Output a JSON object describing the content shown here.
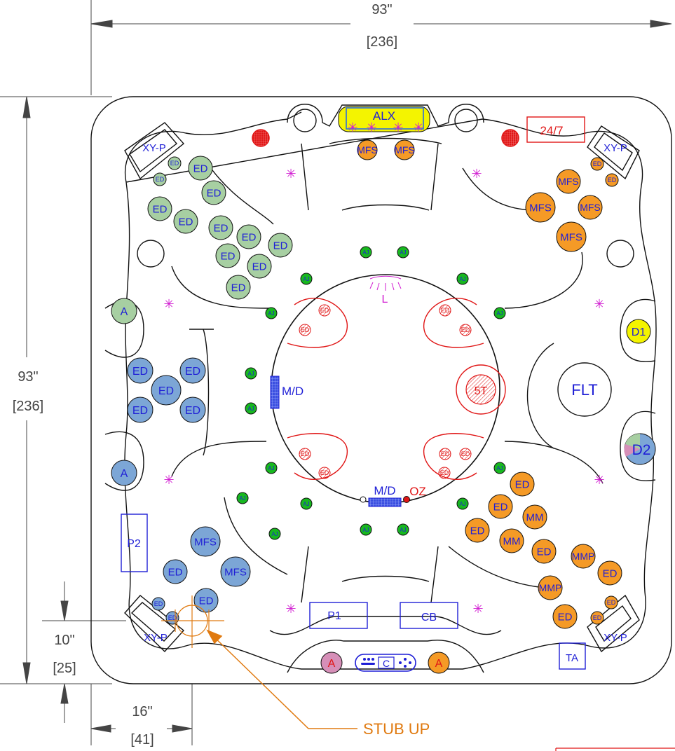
{
  "dimensions": {
    "top_width_in": "93\"",
    "top_width_cm": "[236]",
    "left_height_in": "93\"",
    "left_height_cm": "[236]",
    "corner_offset_y_in": "10\"",
    "corner_offset_y_cm": "[25]",
    "corner_offset_x_in": "16\"",
    "corner_offset_x_cm": "[41]"
  },
  "callout": {
    "stub_up": "STUB UP"
  },
  "colors": {
    "green_jet": "#a7cfa2",
    "blue_jet": "#7ca6d6",
    "orange_jet": "#f59a26",
    "small_green": "#17b81f",
    "label_blue": "#1f1fd6",
    "red": "#e01616",
    "magenta": "#d11bd1",
    "yellow": "#f4f400",
    "pink": "#d68fb8",
    "dim_orange": "#e07a10"
  },
  "components": {
    "alx": "ALX",
    "time_247": "24/7",
    "light": "L",
    "md_left": "M/D",
    "md_bottom": "M/D",
    "oz": "OZ",
    "five_t": "5T",
    "flt": "FLT",
    "d1": "D1",
    "d2": "D2",
    "p1": "P1",
    "p2": "P2",
    "cb": "CB",
    "ta": "TA",
    "c": "C",
    "a_left_upper": "A",
    "a_left_lower": "A",
    "a_front_red": "A",
    "a_front_orange": "A",
    "xyp_tl": "XY-P",
    "xyp_tr": "XY-P",
    "xyp_bl": "XY-P",
    "xyp_br": "XY-P"
  },
  "jet_labels": {
    "ED": "ED",
    "MFS": "MFS",
    "MM": "MM",
    "MMP": "MMP",
    "AJ": "AJ"
  }
}
